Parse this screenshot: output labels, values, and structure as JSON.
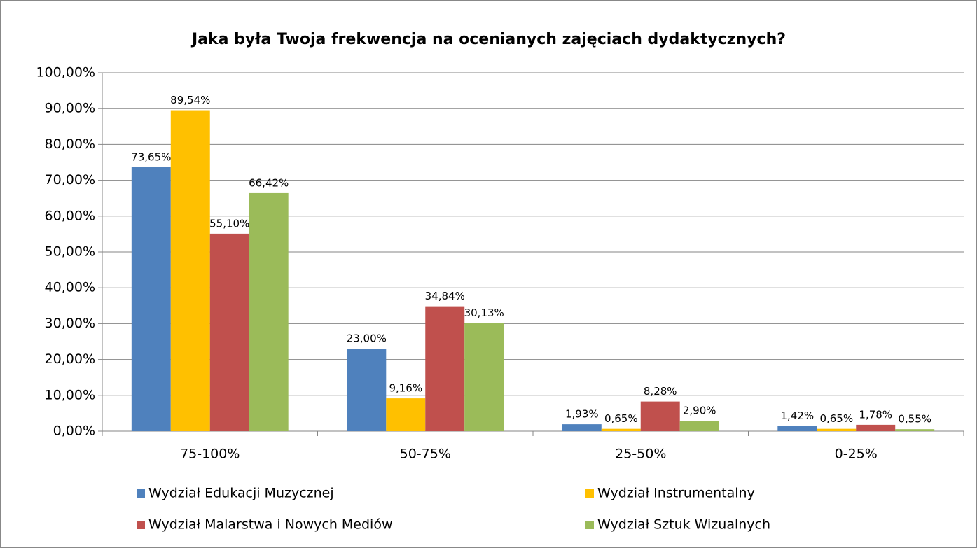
{
  "chart_data": {
    "type": "bar",
    "title": "Jaka była Twoja frekwencja na ocenianych zajęciach dydaktycznych?",
    "categories": [
      "75-100%",
      "50-75%",
      "25-50%",
      "0-25%"
    ],
    "series": [
      {
        "name": "Wydział Edukacji Muzycznej",
        "color": "#4f81bd",
        "values": [
          73.65,
          23.0,
          1.93,
          1.42
        ],
        "value_labels": [
          "73,65%",
          "23,00%",
          "1,93%",
          "1,42%"
        ]
      },
      {
        "name": "Wydział Instrumentalny",
        "color": "#ffc000",
        "values": [
          89.54,
          9.16,
          0.65,
          0.65
        ],
        "value_labels": [
          "89,54%",
          "9,16%",
          "0,65%",
          "0,65%"
        ]
      },
      {
        "name": "Wydział Malarstwa i Nowych Mediów",
        "color": "#c0504d",
        "values": [
          55.1,
          34.84,
          8.28,
          1.78
        ],
        "value_labels": [
          "55,10%",
          "34,84%",
          "8,28%",
          "1,78%"
        ]
      },
      {
        "name": "Wydział Sztuk Wizualnych",
        "color": "#9bbb59",
        "values": [
          66.42,
          30.13,
          2.9,
          0.55
        ],
        "value_labels": [
          "66,42%",
          "30,13%",
          "2,90%",
          "0,55%"
        ]
      }
    ],
    "ylim": [
      0,
      100
    ],
    "yticks": [
      {
        "value": 0,
        "label": "0,00%"
      },
      {
        "value": 10,
        "label": "10,00%"
      },
      {
        "value": 20,
        "label": "20,00%"
      },
      {
        "value": 30,
        "label": "30,00%"
      },
      {
        "value": 40,
        "label": "40,00%"
      },
      {
        "value": 50,
        "label": "50,00%"
      },
      {
        "value": 60,
        "label": "60,00%"
      },
      {
        "value": 70,
        "label": "70,00%"
      },
      {
        "value": 80,
        "label": "80,00%"
      },
      {
        "value": 90,
        "label": "90,00%"
      },
      {
        "value": 100,
        "label": "100,00%"
      }
    ],
    "grid": true,
    "legend": "bottom"
  }
}
